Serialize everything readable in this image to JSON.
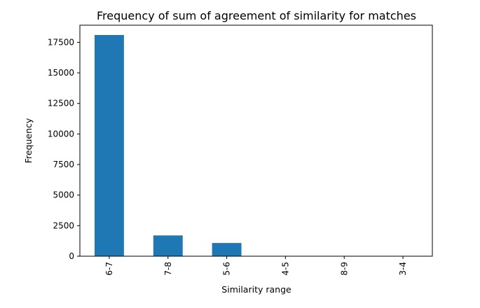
{
  "chart_data": {
    "type": "bar",
    "title": "Frequency of sum of agreement of similarity for matches",
    "xlabel": "Similarity range",
    "ylabel": "Frequency",
    "categories": [
      "6-7",
      "7-8",
      "5-6",
      "4-5",
      "8-9",
      "3-4"
    ],
    "values": [
      18100,
      1700,
      1080,
      10,
      5,
      2
    ],
    "ylim": [
      0,
      18900
    ],
    "yticks": [
      0,
      2500,
      5000,
      7500,
      10000,
      12500,
      15000,
      17500
    ],
    "bar_color": "#1f77b4",
    "grid": false,
    "legend": "none"
  }
}
